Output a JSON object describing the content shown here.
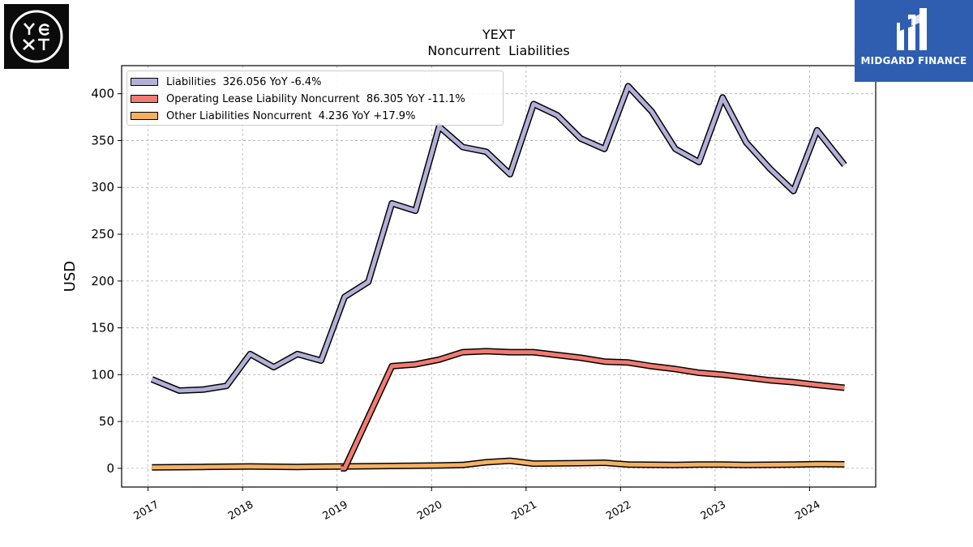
{
  "header": {
    "company": "YEXT",
    "subtitle": "Noncurrent  Liabilities"
  },
  "brand": {
    "left_logo_alt": "YEXT",
    "right_logo_text": "MIDGARD FINANCE"
  },
  "chart_data": {
    "type": "line",
    "title": "YEXT",
    "subtitle": "Noncurrent  Liabilities",
    "xlabel": "",
    "ylabel": "USD",
    "xlim": [
      2016.72,
      2024.7
    ],
    "ylim": [
      -20,
      430
    ],
    "yticks": [
      0,
      50,
      100,
      150,
      200,
      250,
      300,
      350,
      400
    ],
    "xticks": [
      2017,
      2018,
      2019,
      2020,
      2021,
      2022,
      2023,
      2024
    ],
    "grid": true,
    "legend_position": "top-left",
    "series": [
      {
        "name": "Liabilities",
        "legend": "Liabilities  326.056 YoY -6.4%",
        "color": "#b3b0d8",
        "x": [
          2017.04,
          2017.33,
          2017.58,
          2017.83,
          2018.08,
          2018.33,
          2018.58,
          2018.83,
          2019.08,
          2019.33,
          2019.58,
          2019.83,
          2020.08,
          2020.33,
          2020.58,
          2020.83,
          2021.08,
          2021.33,
          2021.58,
          2021.83,
          2022.08,
          2022.33,
          2022.58,
          2022.83,
          2023.08,
          2023.33,
          2023.58,
          2023.83,
          2024.08,
          2024.37
        ],
        "values": [
          95,
          83,
          84,
          88,
          122,
          108,
          122,
          115,
          183,
          199,
          283,
          275,
          365,
          343,
          338,
          314,
          389,
          377,
          352,
          341,
          408,
          381,
          341,
          327,
          396,
          348,
          320,
          296,
          361,
          324
        ]
      },
      {
        "name": "Operating Lease Liability Noncurrent",
        "legend": "Operating Lease Liability Noncurrent  86.305 YoY -11.1%",
        "color": "#f07b72",
        "x": [
          2019.04,
          2019.08,
          2019.58,
          2019.83,
          2020.08,
          2020.33,
          2020.58,
          2020.83,
          2021.08,
          2021.33,
          2021.58,
          2021.83,
          2022.08,
          2022.33,
          2022.58,
          2022.83,
          2023.08,
          2023.33,
          2023.58,
          2023.83,
          2024.08,
          2024.37
        ],
        "values": [
          0,
          0,
          109,
          111,
          116,
          124,
          125,
          124,
          124,
          121,
          118,
          114,
          113,
          109,
          106,
          102,
          100,
          97,
          94,
          92,
          89,
          86
        ]
      },
      {
        "name": "Other Liabilities Noncurrent",
        "legend": "Other Liabilities Noncurrent  4.236 YoY +17.9%",
        "color": "#f5b061",
        "x": [
          2017.04,
          2017.58,
          2018.08,
          2018.58,
          2019.08,
          2019.58,
          2020.08,
          2020.33,
          2020.58,
          2020.83,
          2021.08,
          2021.58,
          2021.83,
          2022.08,
          2022.58,
          2022.83,
          2023.08,
          2023.33,
          2023.83,
          2024.08,
          2024.37
        ],
        "values": [
          1,
          1.5,
          2,
          1.5,
          2,
          2.5,
          3,
          3.5,
          6.5,
          8,
          5,
          5.5,
          6,
          4,
          3.5,
          4,
          4,
          3.5,
          4,
          4.5,
          4.2
        ]
      }
    ]
  }
}
